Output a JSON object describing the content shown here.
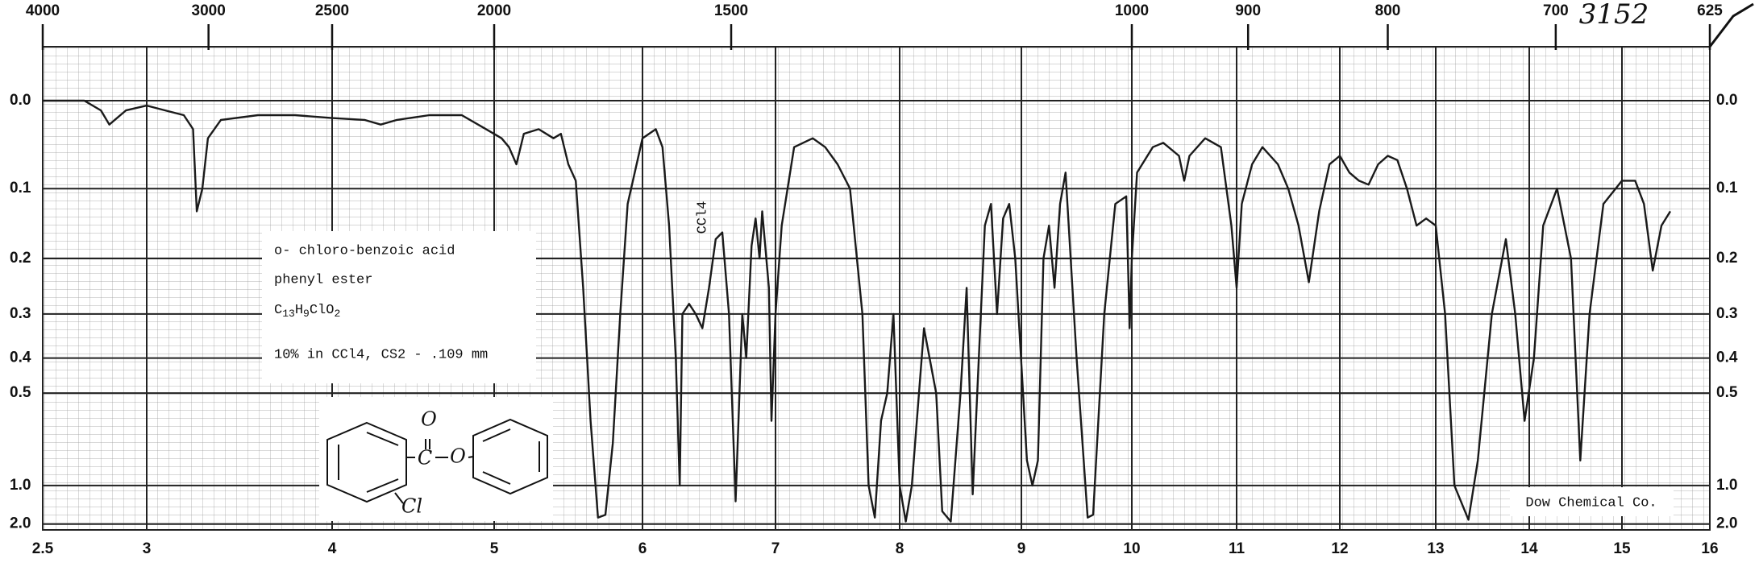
{
  "chart_data": {
    "type": "line",
    "annotation": "3152",
    "source": "Dow Chemical Co.",
    "solvent_mark": "CCl4",
    "sample": {
      "name_line1": "o- chloro-benzoic acid",
      "name_line2": "phenyl ester",
      "formula": "C13H9ClO2",
      "conditions": "10% in CCl4,  CS2 - .109 mm",
      "structure_labels": [
        "O",
        "C",
        "O",
        "Cl"
      ]
    },
    "y_scale": "absorbance",
    "color": "#1a1a1a",
    "grid": true,
    "xlim": [
      2.5,
      16
    ],
    "xticks": [
      2.5,
      3,
      4,
      5,
      6,
      7,
      8,
      9,
      10,
      11,
      12,
      13,
      14,
      15,
      16
    ],
    "x2ticks": [
      4000,
      3000,
      2500,
      2000,
      1500,
      1000,
      900,
      800,
      700,
      625
    ],
    "ylim": [
      0,
      2
    ],
    "yticks": [
      {
        "value": 0,
        "label": "0.0"
      },
      0.1,
      0.2,
      0.3,
      0.4,
      0.5,
      {
        "value": 1,
        "label": "1.0"
      },
      {
        "value": 2,
        "label": "2.0"
      }
    ],
    "x": [
      2.5,
      2.7,
      2.78,
      2.82,
      2.9,
      3.0,
      3.1,
      3.2,
      3.25,
      3.27,
      3.3,
      3.33,
      3.4,
      3.6,
      3.8,
      4.0,
      4.2,
      4.3,
      4.4,
      4.6,
      4.8,
      4.95,
      5.05,
      5.1,
      5.15,
      5.2,
      5.3,
      5.4,
      5.45,
      5.5,
      5.55,
      5.6,
      5.65,
      5.7,
      5.75,
      5.8,
      5.85,
      5.9,
      6.0,
      6.1,
      6.15,
      6.2,
      6.25,
      6.28,
      6.3,
      6.35,
      6.4,
      6.45,
      6.5,
      6.55,
      6.6,
      6.65,
      6.7,
      6.75,
      6.78,
      6.82,
      6.85,
      6.88,
      6.9,
      6.95,
      6.97,
      7.0,
      7.05,
      7.15,
      7.3,
      7.4,
      7.5,
      7.6,
      7.7,
      7.75,
      7.8,
      7.85,
      7.9,
      7.95,
      8.0,
      8.05,
      8.1,
      8.2,
      8.3,
      8.35,
      8.42,
      8.5,
      8.55,
      8.6,
      8.65,
      8.7,
      8.75,
      8.8,
      8.85,
      8.9,
      8.95,
      9.05,
      9.1,
      9.15,
      9.2,
      9.25,
      9.3,
      9.35,
      9.4,
      9.5,
      9.6,
      9.65,
      9.75,
      9.85,
      9.95,
      9.98,
      10.0,
      10.05,
      10.2,
      10.3,
      10.45,
      10.5,
      10.55,
      10.7,
      10.85,
      10.95,
      11.0,
      11.05,
      11.15,
      11.25,
      11.4,
      11.5,
      11.6,
      11.7,
      11.8,
      11.9,
      12.0,
      12.1,
      12.2,
      12.3,
      12.4,
      12.5,
      12.6,
      12.7,
      12.8,
      12.9,
      13.0,
      13.1,
      13.2,
      13.35,
      13.45,
      13.6,
      13.75,
      13.85,
      13.95,
      14.05,
      14.15,
      14.3,
      14.45,
      14.55,
      14.65,
      14.8,
      15.0,
      15.15,
      15.25,
      15.35,
      15.45,
      15.55
    ],
    "values": [
      0,
      0,
      0.01,
      0.025,
      0.01,
      0.005,
      0.01,
      0.015,
      0.03,
      0.13,
      0.1,
      0.04,
      0.02,
      0.015,
      0.015,
      0.018,
      0.02,
      0.025,
      0.02,
      0.015,
      0.015,
      0.03,
      0.04,
      0.05,
      0.07,
      0.035,
      0.03,
      0.04,
      0.035,
      0.07,
      0.09,
      0.25,
      0.6,
      1.6,
      1.5,
      0.7,
      0.3,
      0.12,
      0.04,
      0.03,
      0.05,
      0.15,
      0.4,
      1.0,
      0.3,
      0.28,
      0.3,
      0.33,
      0.25,
      0.17,
      0.16,
      0.3,
      1.2,
      0.3,
      0.4,
      0.18,
      0.14,
      0.2,
      0.13,
      0.25,
      0.6,
      0.3,
      0.15,
      0.05,
      0.04,
      0.05,
      0.07,
      0.1,
      0.3,
      1.0,
      1.6,
      0.6,
      0.5,
      0.3,
      1.0,
      1.8,
      1.0,
      0.33,
      0.5,
      1.4,
      1.8,
      0.5,
      0.25,
      1.1,
      0.4,
      0.15,
      0.12,
      0.3,
      0.14,
      0.12,
      0.2,
      0.8,
      1.0,
      0.8,
      0.2,
      0.15,
      0.25,
      0.12,
      0.08,
      0.4,
      1.6,
      1.5,
      0.3,
      0.12,
      0.11,
      0.33,
      0.2,
      0.08,
      0.05,
      0.045,
      0.06,
      0.09,
      0.06,
      0.04,
      0.05,
      0.15,
      0.25,
      0.12,
      0.07,
      0.05,
      0.07,
      0.1,
      0.15,
      0.24,
      0.13,
      0.07,
      0.06,
      0.08,
      0.09,
      0.095,
      0.07,
      0.06,
      0.065,
      0.1,
      0.15,
      0.14,
      0.15,
      0.3,
      1.0,
      1.7,
      0.8,
      0.3,
      0.17,
      0.3,
      0.6,
      0.4,
      0.15,
      0.1,
      0.2,
      0.8,
      0.3,
      0.12,
      0.09,
      0.09,
      0.12,
      0.22,
      0.15,
      0.13
    ]
  }
}
